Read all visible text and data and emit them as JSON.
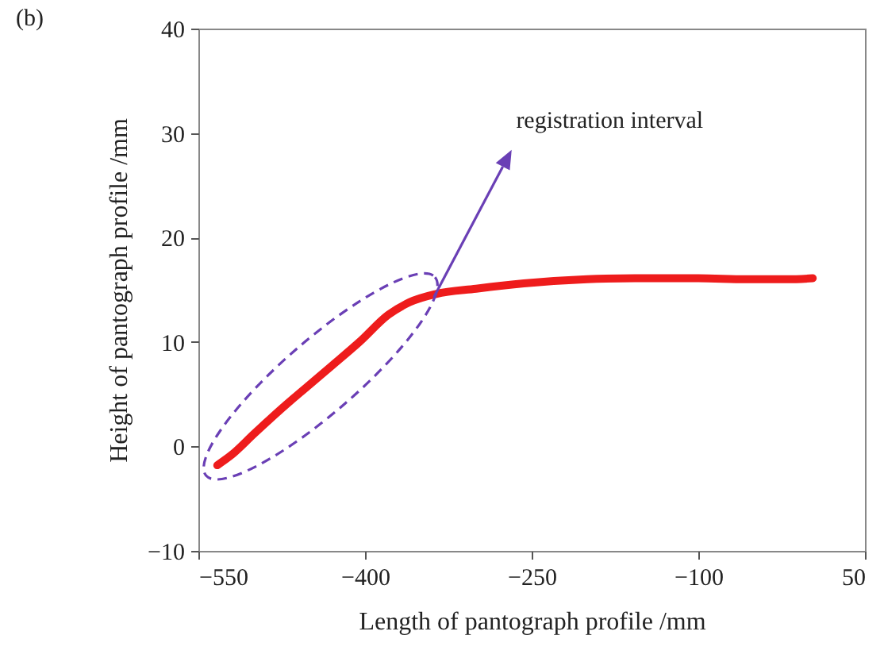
{
  "chart_data": {
    "type": "line",
    "title": "(b)",
    "xlabel": "Length of pantograph profile /mm",
    "ylabel": "Height of pantograph profile /mm",
    "x": [
      -533,
      -520,
      -500,
      -471,
      -450,
      -429,
      -405,
      -379,
      -360,
      -336,
      -300,
      -257,
      -200,
      -157,
      -100,
      -57,
      -20,
      3
    ],
    "series": [
      {
        "color": "#ee1c1c",
        "values": [
          -1.8,
          -0.8,
          1.2,
          4,
          5.9,
          7.8,
          10,
          12.6,
          13.8,
          14.6,
          15.1,
          15.6,
          16,
          16.1,
          16.1,
          16,
          16,
          16.1
        ]
      }
    ],
    "xlim": [
      -550,
      50
    ],
    "xticks": [
      -550,
      -400,
      -250,
      -100,
      50
    ],
    "ylim": [
      -10,
      40
    ],
    "yticks": [
      -10,
      0,
      10,
      20,
      30,
      40
    ],
    "annotations": [
      "registration interval"
    ],
    "grid": false,
    "legend": false,
    "line_style": "solid",
    "marker": "none"
  }
}
